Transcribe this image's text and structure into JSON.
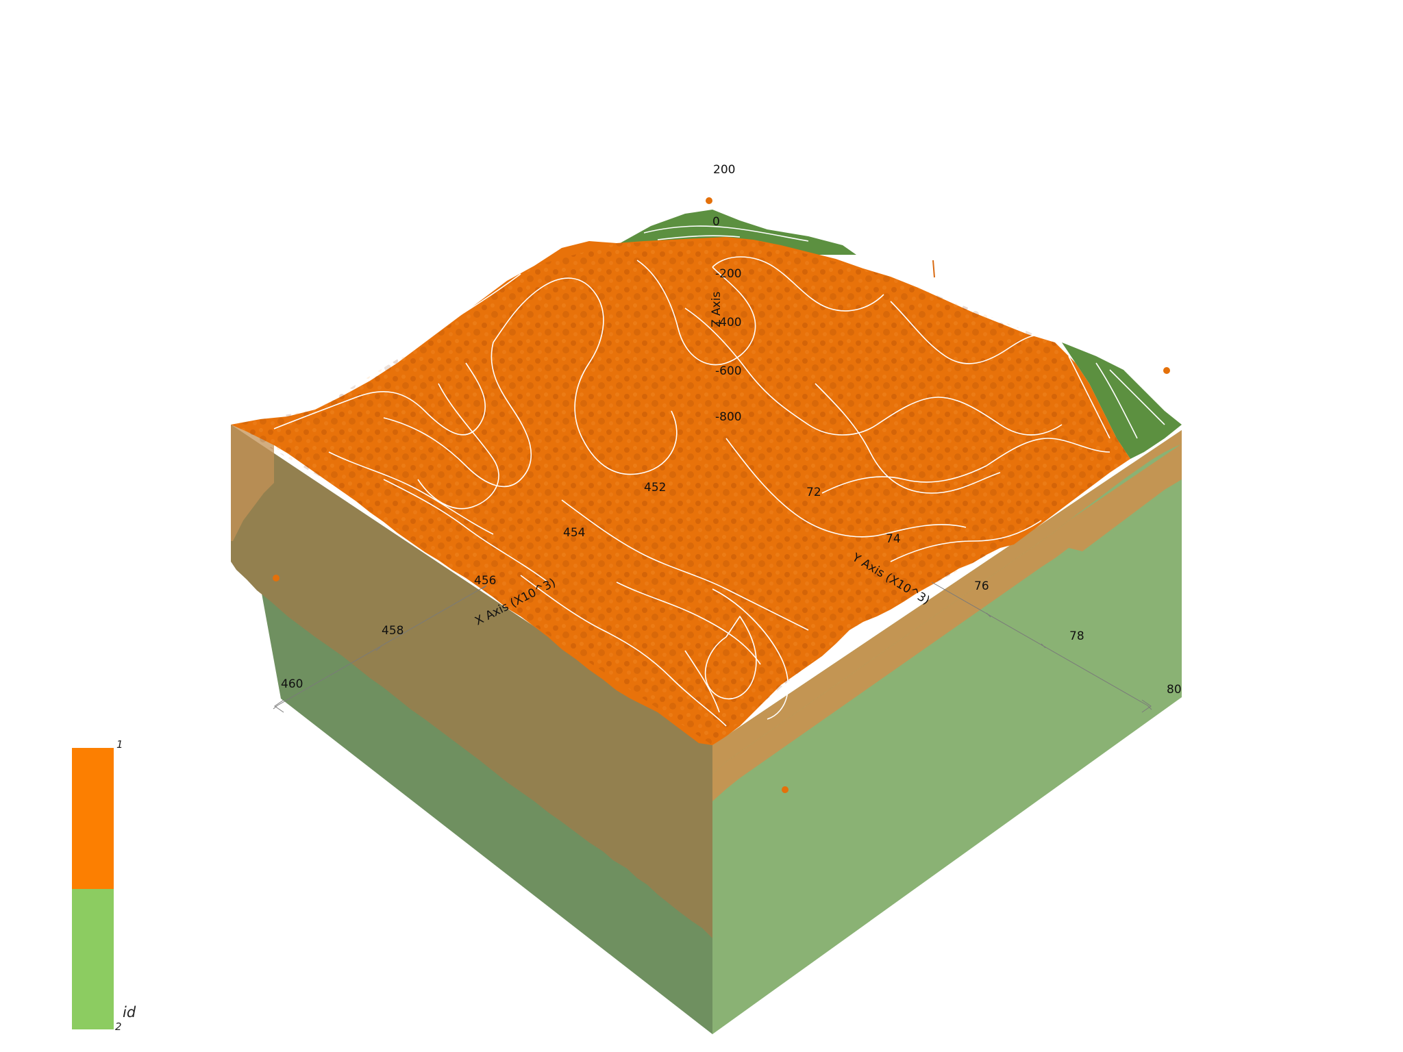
{
  "scene": {
    "colors": {
      "unit_1": "#fc7f01",
      "unit_2": "#8ccc61",
      "contour": "#ffffff",
      "background": "#ffffff"
    }
  },
  "axes": {
    "z": {
      "title": "Z Axis",
      "ticks": [
        "200",
        "0",
        "-200",
        "-400",
        "-600",
        "-800"
      ]
    },
    "x": {
      "title": "X Axis (X10^3)",
      "ticks": [
        "452",
        "454",
        "456",
        "458",
        "460"
      ]
    },
    "y": {
      "title": "Y Axis (X10^3)",
      "ticks": [
        "72",
        "74",
        "76",
        "78",
        "80"
      ]
    }
  },
  "legend": {
    "title": "id",
    "max_label": "1",
    "min_label": "2",
    "entries": [
      {
        "id": "1",
        "color": "#fc7f01"
      },
      {
        "id": "2",
        "color": "#8ccc61"
      }
    ]
  }
}
